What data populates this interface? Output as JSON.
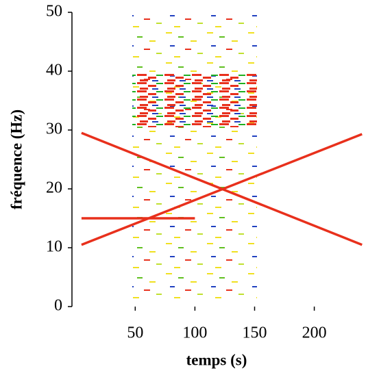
{
  "chart_data": {
    "type": "line",
    "xlabel": "temps (s)",
    "ylabel": "fréquence (Hz)",
    "xlim": [
      -3,
      245
    ],
    "ylim": [
      0,
      50
    ],
    "xticks": [
      50,
      100,
      150,
      200
    ],
    "yticks": [
      0,
      10,
      20,
      30,
      40,
      50
    ],
    "series": [
      {
        "color": "#e8301c",
        "x": [
          5,
          240
        ],
        "values": [
          29.5,
          10.5
        ]
      },
      {
        "color": "#e8301c",
        "x": [
          5,
          240
        ],
        "values": [
          10.5,
          29.3
        ]
      },
      {
        "color": "#e8301c",
        "x": [
          5,
          100
        ],
        "values": [
          15,
          15
        ]
      }
    ]
  }
}
